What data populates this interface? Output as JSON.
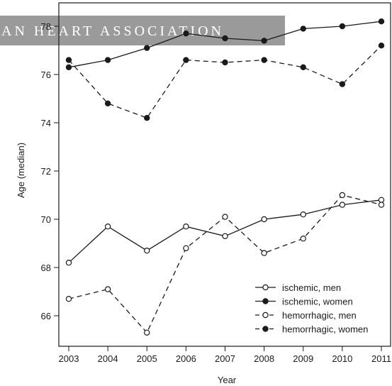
{
  "banner": {
    "text": "AN HEART ASSOCIATION"
  },
  "chart_data": {
    "type": "line",
    "title": "",
    "xlabel": "Year",
    "ylabel": "Age (median)",
    "x": [
      2003,
      2004,
      2005,
      2006,
      2007,
      2008,
      2009,
      2010,
      2011
    ],
    "xlim": [
      2003,
      2011
    ],
    "ylim": [
      65,
      78.3
    ],
    "yticks": [
      66,
      68,
      70,
      72,
      74,
      76,
      78
    ],
    "grid": false,
    "legend_position": "bottom-right",
    "series": [
      {
        "name": "ischemic, men",
        "line": "solid",
        "marker": "open",
        "values": [
          68.2,
          69.7,
          68.7,
          69.7,
          69.3,
          70.0,
          70.2,
          70.6,
          70.8
        ]
      },
      {
        "name": "ischemic, women",
        "line": "solid",
        "marker": "filled",
        "values": [
          76.3,
          76.6,
          77.1,
          77.7,
          77.5,
          77.4,
          77.9,
          78.0,
          78.2
        ]
      },
      {
        "name": "hemorrhagic, men",
        "line": "dashed",
        "marker": "open",
        "values": [
          66.7,
          67.1,
          65.3,
          68.8,
          70.1,
          68.6,
          69.2,
          71.0,
          70.6
        ]
      },
      {
        "name": "hemorrhagic, women",
        "line": "dashed",
        "marker": "filled",
        "values": [
          76.6,
          74.8,
          74.2,
          76.6,
          76.5,
          76.6,
          76.3,
          75.6,
          77.2
        ]
      }
    ]
  }
}
